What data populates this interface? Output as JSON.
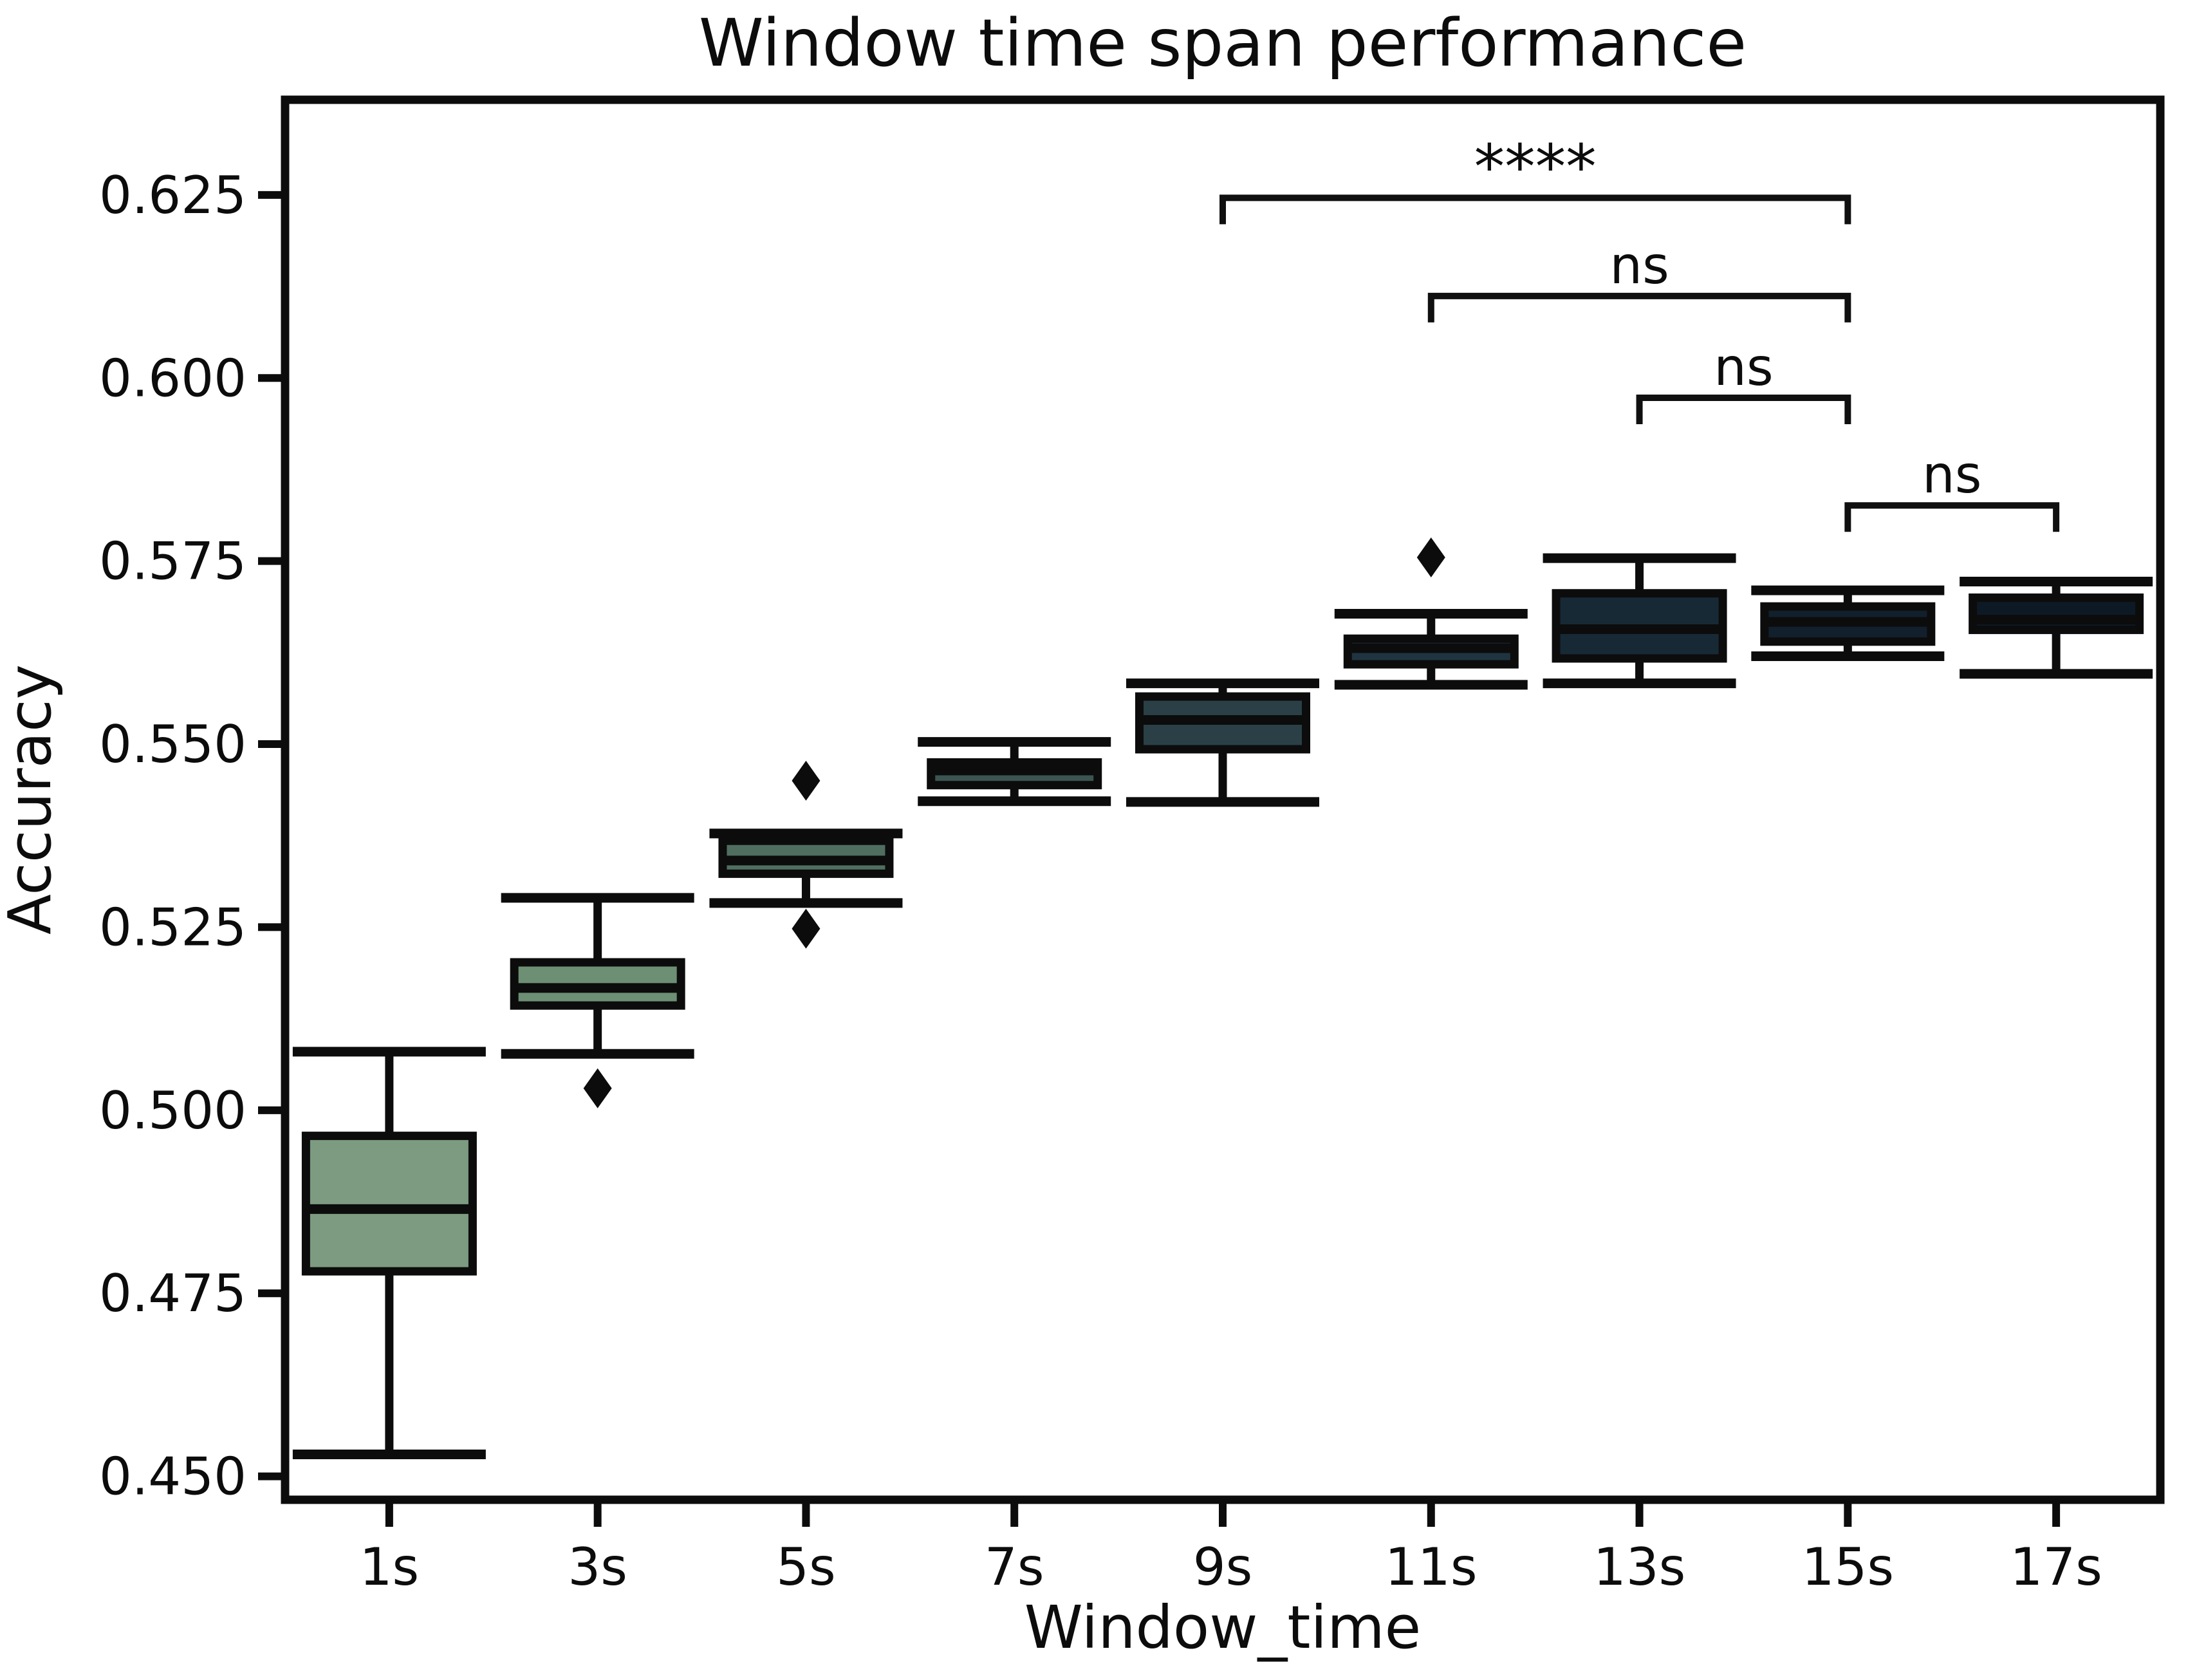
{
  "chart_data": {
    "type": "box",
    "title": "Window time span performance",
    "xlabel": "Window_time",
    "ylabel": "Accuracy",
    "categories": [
      "1s",
      "3s",
      "5s",
      "7s",
      "9s",
      "11s",
      "13s",
      "15s",
      "17s"
    ],
    "y_tick_labels": [
      "0.450",
      "0.475",
      "0.500",
      "0.525",
      "0.550",
      "0.575",
      "0.600",
      "0.625"
    ],
    "y_tick_values": [
      0.45,
      0.475,
      0.5,
      0.525,
      0.55,
      0.575,
      0.6,
      0.625
    ],
    "ylim": [
      0.4468,
      0.638
    ],
    "grid": false,
    "legend_position": "none",
    "background_color": "#ffffff",
    "edge_color": "#0c0c0c",
    "outlier_marker": "diamond",
    "boxes": [
      {
        "category": "1s",
        "whisker_low": 0.453,
        "q1": 0.478,
        "median": 0.4865,
        "q3": 0.4965,
        "whisker_high": 0.508,
        "outliers": [],
        "color": "#7d9b80"
      },
      {
        "category": "3s",
        "whisker_low": 0.5077,
        "q1": 0.5143,
        "median": 0.5167,
        "q3": 0.5202,
        "whisker_high": 0.529,
        "outliers": [
          0.503
        ],
        "color": "#6d8f74"
      },
      {
        "category": "5s",
        "whisker_low": 0.5283,
        "q1": 0.5323,
        "median": 0.5341,
        "q3": 0.5368,
        "whisker_high": 0.5378,
        "outliers": [
          0.545,
          0.5248
        ],
        "color": "#4f6e60"
      },
      {
        "category": "7s",
        "whisker_low": 0.5422,
        "q1": 0.5444,
        "median": 0.5464,
        "q3": 0.5475,
        "whisker_high": 0.5503,
        "outliers": [],
        "color": "#3b5551"
      },
      {
        "category": "9s",
        "whisker_low": 0.5421,
        "q1": 0.5493,
        "median": 0.5533,
        "q3": 0.5565,
        "whisker_high": 0.5583,
        "outliers": [],
        "color": "#2a4046"
      },
      {
        "category": "11s",
        "whisker_low": 0.5581,
        "q1": 0.5609,
        "median": 0.5631,
        "q3": 0.5644,
        "whisker_high": 0.5678,
        "outliers": [
          0.5755
        ],
        "color": "#1f3440"
      },
      {
        "category": "13s",
        "whisker_low": 0.5583,
        "q1": 0.5617,
        "median": 0.5657,
        "q3": 0.5706,
        "whisker_high": 0.5754,
        "outliers": [],
        "color": "#182936"
      },
      {
        "category": "15s",
        "whisker_low": 0.562,
        "q1": 0.564,
        "median": 0.5667,
        "q3": 0.5688,
        "whisker_high": 0.571,
        "outliers": [],
        "color": "#121f2c"
      },
      {
        "category": "17s",
        "whisker_low": 0.5596,
        "q1": 0.5656,
        "median": 0.567,
        "q3": 0.57,
        "whisker_high": 0.5722,
        "outliers": [],
        "color": "#0d1a26"
      }
    ],
    "annotations": [
      {
        "label": "****",
        "from": "9s",
        "to": "15s",
        "y": 0.6246
      },
      {
        "label": "ns",
        "from": "11s",
        "to": "15s",
        "y": 0.6112
      },
      {
        "label": "ns",
        "from": "13s",
        "to": "15s",
        "y": 0.5973
      },
      {
        "label": "ns",
        "from": "15s",
        "to": "17s",
        "y": 0.5826
      }
    ]
  }
}
